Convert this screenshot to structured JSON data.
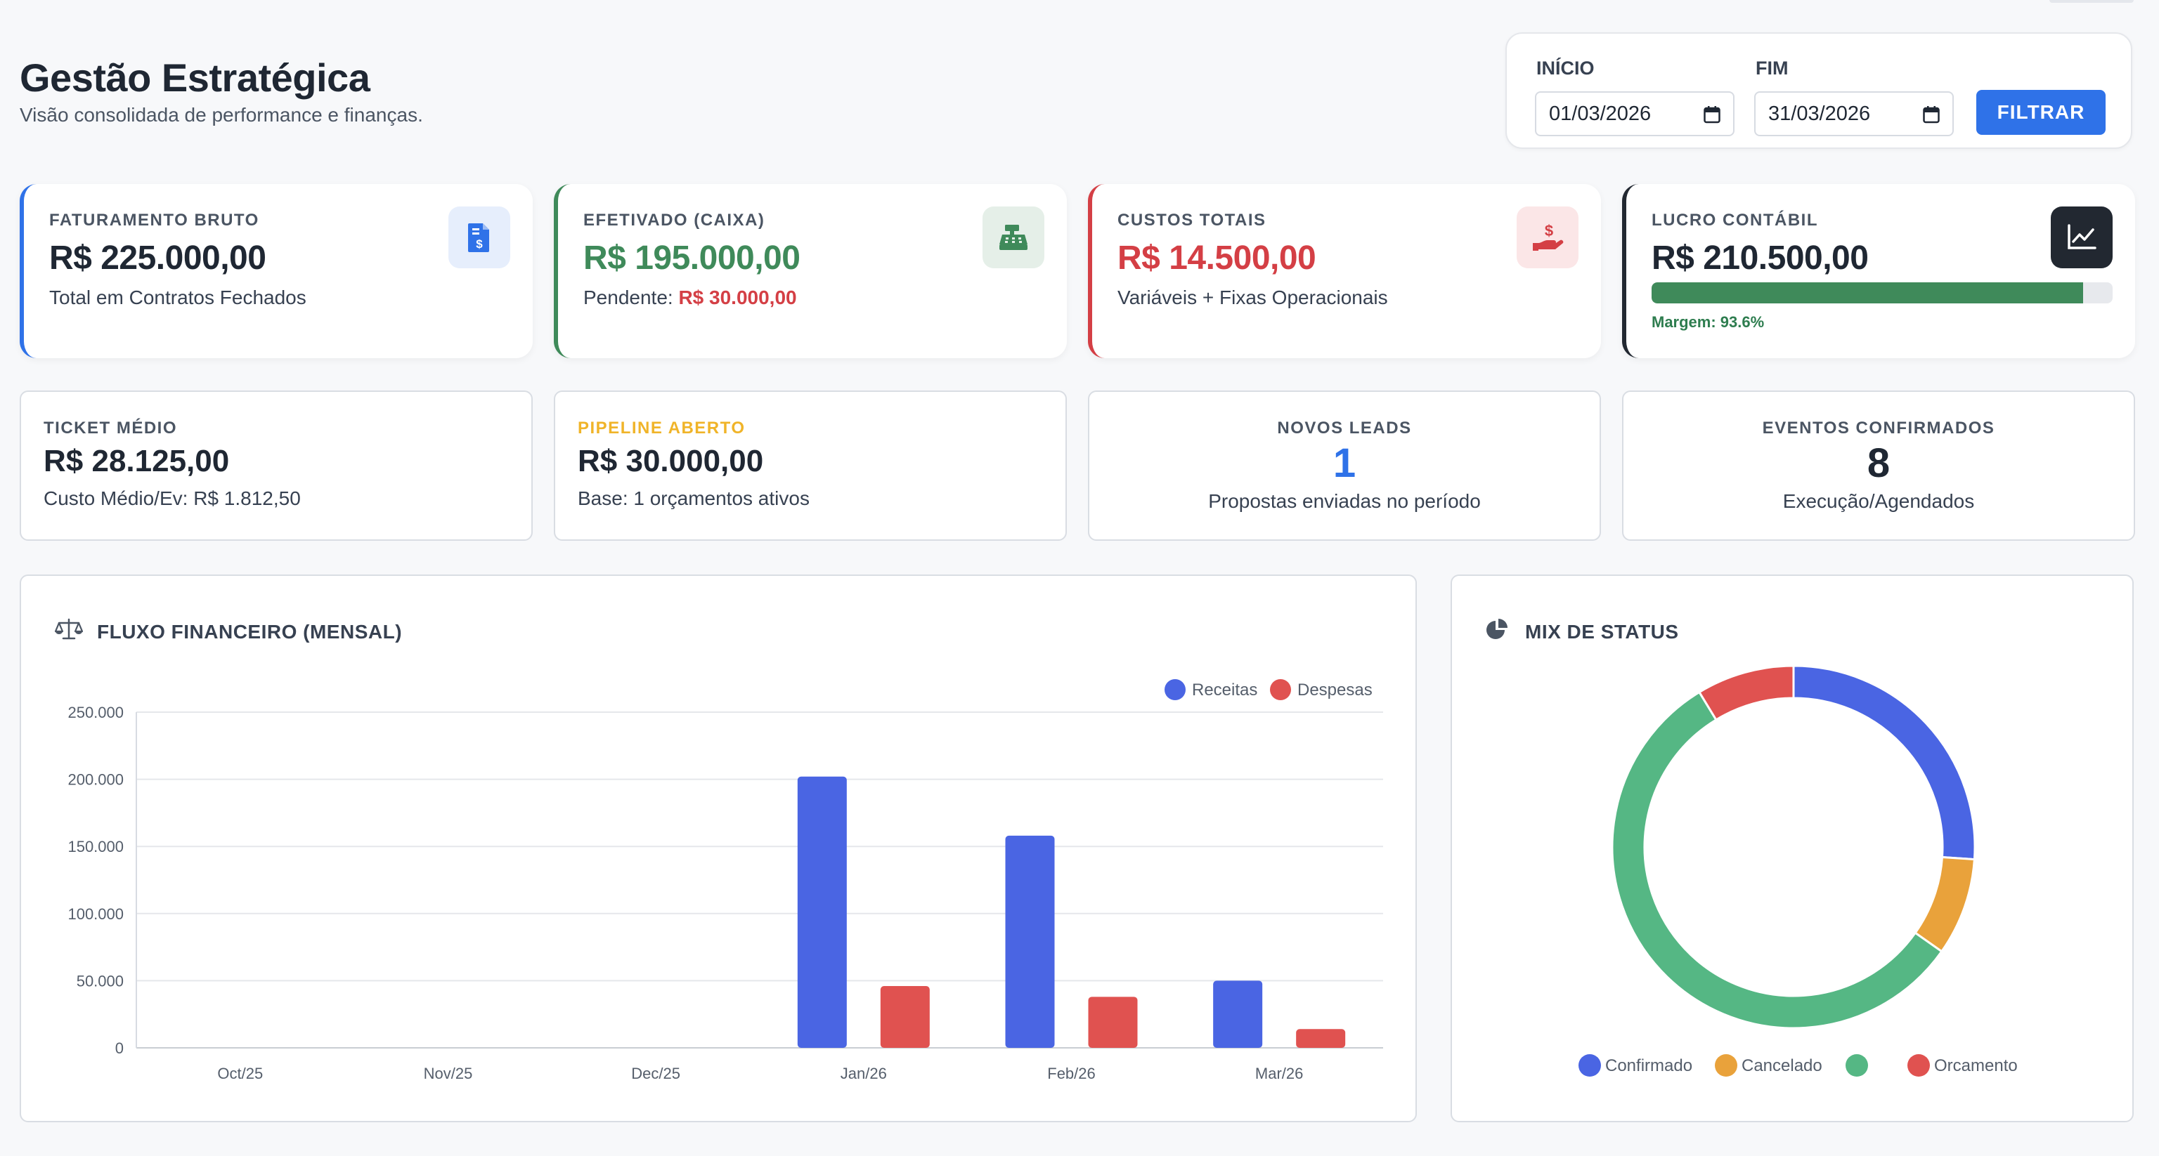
{
  "header": {
    "title": "Gestão Estratégica",
    "subtitle": "Visão consolidada de performance e finanças."
  },
  "filter": {
    "start_label": "INÍCIO",
    "start_value": "01/03/2026",
    "end_label": "FIM",
    "end_value": "31/03/2026",
    "button_label": "FILTRAR"
  },
  "kpis": [
    {
      "label": "FATURAMENTO BRUTO",
      "value": "R$ 225.000,00",
      "sub": "Total em Contratos Fechados",
      "accent": "#2f72e8",
      "icon": "invoice-dollar-icon"
    },
    {
      "label": "EFETIVADO (CAIXA)",
      "value": "R$ 195.000,00",
      "sub_prefix": "Pendente:",
      "sub_value": "R$ 30.000,00",
      "accent": "#3f8a5a",
      "icon": "cash-register-icon"
    },
    {
      "label": "CUSTOS TOTAIS",
      "value": "R$ 14.500,00",
      "sub": "Variáveis + Fixas Operacionais",
      "accent": "#d43f45",
      "icon": "hand-dollar-icon"
    },
    {
      "label": "LUCRO CONTÁBIL",
      "value": "R$ 210.500,00",
      "margin_text": "Margem: 93.6%",
      "margin_fraction": 0.936,
      "accent": "#222831",
      "icon": "chart-line-icon"
    }
  ],
  "stats": [
    {
      "label": "TICKET MÉDIO",
      "value": "R$ 28.125,00",
      "sub": "Custo Médio/Ev: R$ 1.812,50"
    },
    {
      "label": "PIPELINE ABERTO",
      "value": "R$ 30.000,00",
      "sub": "Base: 1 orçamentos ativos",
      "label_color": "#f0b429"
    },
    {
      "label": "NOVOS LEADS",
      "value": "1",
      "sub": "Propostas enviadas no período",
      "value_color": "#2f72e8"
    },
    {
      "label": "EVENTOS CONFIRMADOS",
      "value": "8",
      "sub": "Execução/Agendados"
    }
  ],
  "flow_panel": {
    "title": "FLUXO FINANCEIRO (MENSAL)",
    "icon": "balance-scale-icon"
  },
  "mix_panel": {
    "title": "MIX DE STATUS",
    "icon": "pie-chart-icon"
  },
  "chart_data": [
    {
      "type": "bar",
      "categories": [
        "Oct/25",
        "Nov/25",
        "Dec/25",
        "Jan/26",
        "Feb/26",
        "Mar/26"
      ],
      "series": [
        {
          "name": "Receitas",
          "color": "#4a65e3",
          "values": [
            0,
            0,
            0,
            202000,
            158000,
            50000
          ]
        },
        {
          "name": "Despesas",
          "color": "#e05250",
          "values": [
            0,
            0,
            0,
            46000,
            38000,
            14000
          ]
        }
      ],
      "ylim": [
        0,
        250000
      ],
      "yticks": [
        "0",
        "50.000",
        "100.000",
        "150.000",
        "200.000",
        "250.000"
      ],
      "ytick_values": [
        0,
        50000,
        100000,
        150000,
        200000,
        250000
      ],
      "grid": true,
      "legend": "top-right"
    },
    {
      "type": "pie",
      "style": "doughnut",
      "labels": [
        "Confirmado",
        "Cancelado",
        "",
        "Orcamento"
      ],
      "values": [
        3,
        1,
        6.5,
        1
      ],
      "colors": [
        "#4a65e3",
        "#e9a23b",
        "#55b784",
        "#e05250"
      ],
      "legend": "bottom"
    }
  ]
}
